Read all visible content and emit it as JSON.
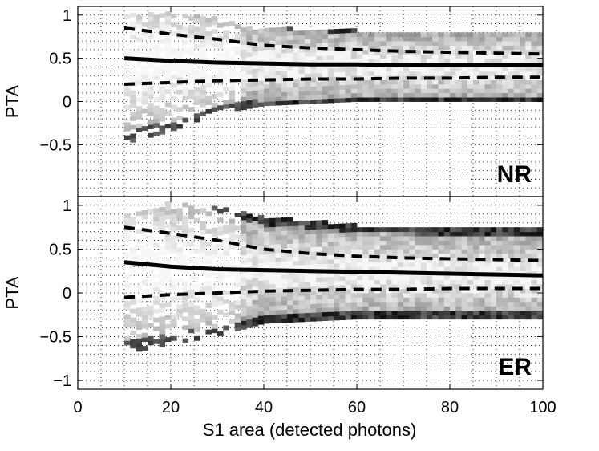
{
  "chart_data": {
    "type": "heatmap",
    "xlabel": "S1 area (detected photons)",
    "xlim": [
      0,
      100
    ],
    "xticks": [
      "0",
      "20",
      "40",
      "60",
      "80",
      "100"
    ],
    "x_tick_values": [
      0,
      20,
      40,
      60,
      80,
      100
    ],
    "grid": "dotted",
    "shared_x_axis": true,
    "colormap": "grayscale",
    "panels": [
      {
        "name": "NR",
        "label": "NR",
        "ylabel": "PTA",
        "ylim": [
          -1.1,
          1.1
        ],
        "yticks": [
          "1",
          "0.5",
          "0",
          "−0.5"
        ],
        "y_tick_values": [
          1,
          0.5,
          0,
          -0.5
        ],
        "density_upper_edge": [
          [
            10,
            1.0
          ],
          [
            20,
            1.0
          ],
          [
            30,
            0.95
          ],
          [
            35,
            0.85
          ],
          [
            40,
            0.82
          ],
          [
            60,
            0.8
          ],
          [
            100,
            0.8
          ]
        ],
        "density_lower_edge": [
          [
            10,
            -0.5
          ],
          [
            20,
            -0.35
          ],
          [
            30,
            -0.15
          ],
          [
            40,
            -0.05
          ],
          [
            60,
            0.0
          ],
          [
            100,
            0.0
          ]
        ],
        "series": [
          {
            "name": "median",
            "style": "solid",
            "x": [
              10,
              20,
              30,
              40,
              50,
              60,
              70,
              80,
              90,
              100
            ],
            "y": [
              0.5,
              0.47,
              0.45,
              0.44,
              0.43,
              0.43,
              0.42,
              0.42,
              0.42,
              0.42
            ]
          },
          {
            "name": "upper band",
            "style": "dashed",
            "x": [
              10,
              20,
              30,
              40,
              50,
              60,
              70,
              80,
              90,
              100
            ],
            "y": [
              0.85,
              0.78,
              0.72,
              0.65,
              0.62,
              0.6,
              0.58,
              0.57,
              0.56,
              0.55
            ]
          },
          {
            "name": "lower band",
            "style": "dashed",
            "x": [
              10,
              20,
              30,
              40,
              50,
              60,
              70,
              80,
              90,
              100
            ],
            "y": [
              0.2,
              0.22,
              0.24,
              0.25,
              0.26,
              0.26,
              0.27,
              0.27,
              0.28,
              0.28
            ]
          }
        ]
      },
      {
        "name": "ER",
        "label": "ER",
        "ylabel": "PTA",
        "ylim": [
          -1.1,
          1.1
        ],
        "yticks": [
          "1",
          "0.5",
          "0",
          "−0.5",
          "−1"
        ],
        "y_tick_values": [
          1,
          0.5,
          0,
          -0.5,
          -1
        ],
        "density_upper_edge": [
          [
            10,
            1.0
          ],
          [
            20,
            1.0
          ],
          [
            30,
            0.95
          ],
          [
            35,
            0.9
          ],
          [
            40,
            0.85
          ],
          [
            60,
            0.75
          ],
          [
            100,
            0.7
          ]
        ],
        "density_lower_edge": [
          [
            10,
            -0.7
          ],
          [
            20,
            -0.6
          ],
          [
            30,
            -0.5
          ],
          [
            40,
            -0.35
          ],
          [
            60,
            -0.3
          ],
          [
            100,
            -0.3
          ]
        ],
        "series": [
          {
            "name": "median",
            "style": "solid",
            "x": [
              10,
              20,
              30,
              40,
              50,
              60,
              70,
              80,
              90,
              100
            ],
            "y": [
              0.35,
              0.3,
              0.27,
              0.26,
              0.25,
              0.24,
              0.23,
              0.22,
              0.21,
              0.2
            ]
          },
          {
            "name": "upper band",
            "style": "dashed",
            "x": [
              10,
              20,
              30,
              40,
              50,
              60,
              70,
              80,
              90,
              100
            ],
            "y": [
              0.75,
              0.68,
              0.6,
              0.5,
              0.45,
              0.42,
              0.4,
              0.39,
              0.38,
              0.37
            ]
          },
          {
            "name": "lower band",
            "style": "dashed",
            "x": [
              10,
              20,
              30,
              40,
              50,
              60,
              70,
              80,
              90,
              100
            ],
            "y": [
              -0.05,
              -0.02,
              0.0,
              0.02,
              0.03,
              0.04,
              0.04,
              0.05,
              0.05,
              0.05
            ]
          }
        ]
      }
    ]
  }
}
